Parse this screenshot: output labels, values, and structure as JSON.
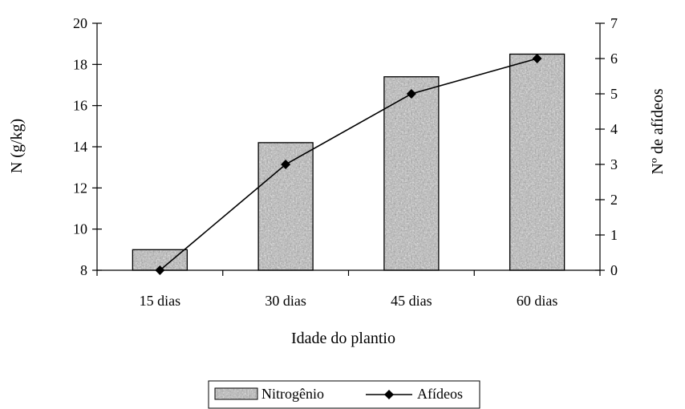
{
  "chart_data": {
    "type": "bar",
    "categories": [
      "15 dias",
      "30 dias",
      "45 dias",
      "60 dias"
    ],
    "series": [
      {
        "name": "Nitrogênio",
        "type": "bar",
        "axis": "left",
        "values": [
          9.0,
          14.2,
          17.4,
          18.5
        ]
      },
      {
        "name": "Afídeos",
        "type": "line",
        "axis": "right",
        "marker": "diamond",
        "values": [
          0,
          3,
          5,
          6
        ]
      }
    ],
    "xlabel": "Idade do plantio",
    "ylabel": "N (g/kg)",
    "y2label": "Nº de afídeos",
    "ylim": [
      8,
      20
    ],
    "y_ticks": [
      "8",
      "10",
      "12",
      "14",
      "16",
      "18",
      "20"
    ],
    "y2lim": [
      0,
      7
    ],
    "y2_ticks": [
      "0",
      "1",
      "2",
      "3",
      "4",
      "5",
      "6",
      "7"
    ],
    "grid": false,
    "legend_position": "bottom",
    "colors": {
      "bar_fill": "#a8a8a8",
      "bar_texture": "#6e6e6e",
      "line": "#000000",
      "axis": "#000000"
    }
  }
}
